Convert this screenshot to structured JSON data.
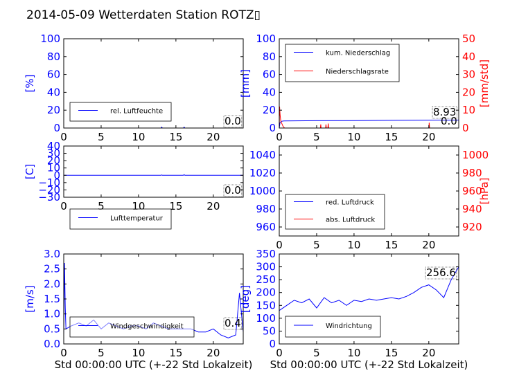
{
  "title": "2014-05-09 Wetterdaten Station ROTZ▯",
  "colors": {
    "left_axis": "#0000ff",
    "right_axis": "#ff0000",
    "series1": "#0000ff",
    "series2": "#ff0000"
  },
  "chart_data": [
    {
      "id": "humidity",
      "type": "line",
      "xlabel": "",
      "ylabel": "[%]",
      "xlim": [
        0,
        24
      ],
      "ylim": [
        0,
        100
      ],
      "xticks": [
        "0",
        "5",
        "10",
        "15",
        "20"
      ],
      "yticks": [
        "0",
        "20",
        "40",
        "60",
        "80",
        "100"
      ],
      "legend": [
        "rel. Luftfeuchte"
      ],
      "legend_position": "lower-left",
      "value_label": "0.0",
      "series": [
        {
          "name": "rel. Luftfeuchte",
          "x": [
            0,
            5,
            10,
            13,
            13.1,
            13.2,
            16,
            16.1,
            16.2,
            24
          ],
          "y": [
            0,
            0,
            0,
            0,
            1,
            0,
            0,
            1,
            0,
            0
          ]
        }
      ]
    },
    {
      "id": "precip",
      "type": "line",
      "xlabel": "",
      "ylabel": "[mm]",
      "ylabel_right": "[mm/std]",
      "xlim": [
        0,
        24
      ],
      "ylim": [
        0,
        100
      ],
      "ylim_right": [
        0,
        50
      ],
      "xticks": [
        "0",
        "5",
        "10",
        "15",
        "20"
      ],
      "yticks": [
        "0",
        "20",
        "40",
        "60",
        "80",
        "100"
      ],
      "yticks_right": [
        "0",
        "10",
        "20",
        "30",
        "40",
        "50"
      ],
      "legend": [
        "kum. Niederschlag",
        "Niederschlagsrate"
      ],
      "legend_position": "top-left",
      "value_label": "8.93",
      "value_label2": "0.0",
      "series": [
        {
          "name": "kum. Niederschlag",
          "x": [
            0,
            0.1,
            0.3,
            0.6,
            5,
            10,
            15,
            20,
            24
          ],
          "y": [
            0,
            6,
            7.5,
            8,
            8.2,
            8.4,
            8.6,
            8.8,
            8.93
          ]
        },
        {
          "name": "Niederschlagsrate",
          "x": [
            0,
            0.05,
            0.1,
            0.15,
            0.2,
            0.3,
            0.5,
            0.7,
            5.5,
            5.55,
            5.6,
            6.2,
            6.25,
            6.3,
            6.5,
            6.55,
            6.6,
            20,
            20.05,
            20.1,
            24
          ],
          "y": [
            0,
            12,
            8,
            6,
            4,
            3,
            1,
            0,
            0,
            2,
            0,
            0,
            2,
            0,
            0,
            2.5,
            0,
            0,
            3,
            0,
            0
          ],
          "axis": "right"
        }
      ]
    },
    {
      "id": "temperature",
      "type": "line",
      "xlabel": "",
      "ylabel": "[C]",
      "xlim": [
        0,
        24
      ],
      "ylim": [
        -30,
        40
      ],
      "xticks": [
        "0",
        "5",
        "10",
        "15",
        "20"
      ],
      "yticks": [
        "−30",
        "−20",
        "−10",
        "0",
        "10",
        "20",
        "30",
        "40"
      ],
      "legend": [
        "Lufttemperatur"
      ],
      "legend_position": "lower-left",
      "value_label": "0.0",
      "series": [
        {
          "name": "Lufttemperatur",
          "x": [
            0,
            13,
            13.1,
            13.2,
            16,
            16.1,
            16.2,
            24
          ],
          "y": [
            0,
            0,
            0.5,
            0,
            0,
            0.8,
            0,
            0
          ]
        }
      ]
    },
    {
      "id": "pressure",
      "type": "line",
      "xlabel": "",
      "ylabel": "",
      "ylabel_right": "[hPa]",
      "xlim": [
        0,
        24
      ],
      "ylim": [
        950,
        1050
      ],
      "ylim_right": [
        910,
        1010
      ],
      "xticks": [
        "0",
        "5",
        "10",
        "15",
        "20"
      ],
      "yticks": [
        "960",
        "980",
        "1000",
        "1020",
        "1040"
      ],
      "yticks_right": [
        "920",
        "940",
        "960",
        "980",
        "1000"
      ],
      "legend": [
        "red. Luftdruck",
        "abs. Luftdruck"
      ],
      "legend_position": "lower-left",
      "series": []
    },
    {
      "id": "windspeed",
      "type": "line",
      "xlabel": "Std 00:00:00 UTC (+-22 Std Lokalzeit)",
      "ylabel": "[m/s]",
      "xlim": [
        0,
        24
      ],
      "ylim": [
        0,
        3.0
      ],
      "xticks": [
        "0",
        "5",
        "10",
        "15",
        "20"
      ],
      "yticks": [
        "0.0",
        "0.5",
        "1.0",
        "1.5",
        "2.0",
        "2.5",
        "3.0"
      ],
      "legend": [
        "Windgeschwindigkeit"
      ],
      "legend_position": "lower-left",
      "value_label": "0.4",
      "series": [
        {
          "name": "Windgeschwindigkeit",
          "x": [
            0,
            0.1,
            0.2,
            0.3,
            1,
            2,
            3,
            4,
            5,
            6,
            7,
            8,
            9,
            10,
            11,
            12,
            13,
            14,
            15,
            16,
            17,
            18,
            19,
            20,
            21,
            22,
            23,
            23.5,
            24
          ],
          "y": [
            0.3,
            2.7,
            1.2,
            0.5,
            0.6,
            0.7,
            0.6,
            0.8,
            0.5,
            0.7,
            0.6,
            0.5,
            0.6,
            0.6,
            0.5,
            0.7,
            0.6,
            0.5,
            0.5,
            0.5,
            0.5,
            0.4,
            0.4,
            0.5,
            0.3,
            0.2,
            0.3,
            1.7,
            0.4
          ]
        }
      ]
    },
    {
      "id": "winddir",
      "type": "line",
      "xlabel": "Std 00:00:00 UTC (+-22 Std Lokalzeit)",
      "ylabel": "[deg]",
      "xlim": [
        0,
        24
      ],
      "ylim": [
        0,
        350
      ],
      "xticks": [
        "0",
        "5",
        "10",
        "15",
        "20"
      ],
      "yticks": [
        "0",
        "50",
        "100",
        "150",
        "200",
        "250",
        "300",
        "350"
      ],
      "legend": [
        "Windrichtung"
      ],
      "legend_position": "lower-left",
      "value_label": "256.6",
      "series": [
        {
          "name": "Windrichtung",
          "x": [
            0,
            1,
            2,
            3,
            4,
            5,
            6,
            7,
            8,
            9,
            10,
            11,
            12,
            13,
            14,
            15,
            16,
            17,
            18,
            19,
            20,
            21,
            22,
            23,
            24
          ],
          "y": [
            130,
            150,
            170,
            160,
            175,
            140,
            180,
            160,
            170,
            150,
            170,
            165,
            175,
            170,
            175,
            180,
            175,
            185,
            200,
            220,
            230,
            210,
            180,
            250,
            300
          ]
        }
      ]
    }
  ]
}
